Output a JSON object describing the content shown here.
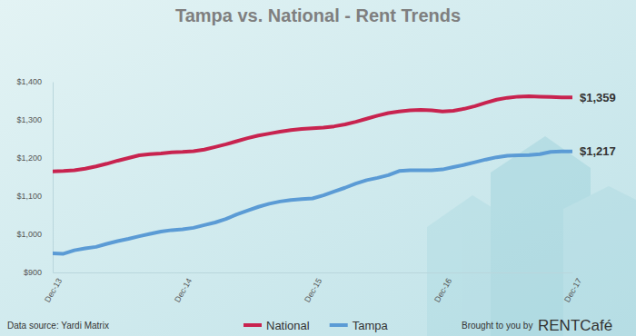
{
  "chart_data": {
    "type": "line",
    "title": "Tampa vs. National - Rent Trends",
    "source": "Data source: Yardi Matrix",
    "credit": "Brought to you by",
    "logo": "RENTCafé",
    "categories": [
      "Dec-13",
      null,
      null,
      null,
      null,
      null,
      null,
      null,
      null,
      null,
      null,
      null,
      "Dec-14",
      null,
      null,
      null,
      null,
      null,
      null,
      null,
      null,
      null,
      null,
      null,
      "Dec-15",
      null,
      null,
      null,
      null,
      null,
      null,
      null,
      null,
      null,
      null,
      null,
      "Dec-16",
      null,
      null,
      null,
      null,
      null,
      null,
      null,
      null,
      null,
      null,
      null,
      "Dec-17"
    ],
    "series": [
      {
        "name": "National",
        "color": "#c8234f",
        "values": [
          1165,
          1166,
          1168,
          1172,
          1178,
          1185,
          1193,
          1200,
          1207,
          1210,
          1212,
          1215,
          1216,
          1218,
          1222,
          1229,
          1236,
          1244,
          1252,
          1259,
          1264,
          1269,
          1273,
          1276,
          1278,
          1280,
          1283,
          1288,
          1295,
          1303,
          1311,
          1318,
          1322,
          1325,
          1326,
          1325,
          1322,
          1324,
          1329,
          1336,
          1345,
          1353,
          1358,
          1361,
          1362,
          1361,
          1360,
          1359,
          1359
        ],
        "value_labels": [
          null,
          null,
          null,
          null,
          null,
          null,
          null,
          null,
          null,
          null,
          null,
          null,
          null,
          null,
          null,
          null,
          null,
          null,
          null,
          null,
          null,
          null,
          null,
          null,
          null,
          null,
          null,
          null,
          null,
          null,
          null,
          null,
          null,
          null,
          null,
          null,
          null,
          null,
          null,
          null,
          null,
          null,
          null,
          null,
          null,
          null,
          null,
          null,
          "$1,359"
        ]
      },
      {
        "name": "Tampa",
        "color": "#5b9bd5",
        "values": [
          950,
          949,
          958,
          963,
          967,
          975,
          982,
          988,
          995,
          1001,
          1007,
          1011,
          1013,
          1017,
          1024,
          1031,
          1040,
          1052,
          1062,
          1072,
          1080,
          1086,
          1090,
          1092,
          1094,
          1102,
          1112,
          1122,
          1133,
          1142,
          1148,
          1155,
          1166,
          1168,
          1168,
          1168,
          1170,
          1176,
          1182,
          1189,
          1196,
          1202,
          1206,
          1207,
          1208,
          1210,
          1216,
          1217,
          1217
        ],
        "value_labels": [
          null,
          null,
          null,
          null,
          null,
          null,
          null,
          null,
          null,
          null,
          null,
          null,
          null,
          null,
          null,
          null,
          null,
          null,
          null,
          null,
          null,
          null,
          null,
          null,
          null,
          null,
          null,
          null,
          null,
          null,
          null,
          null,
          null,
          null,
          null,
          null,
          null,
          null,
          null,
          null,
          null,
          null,
          null,
          null,
          null,
          null,
          null,
          null,
          "$1,217"
        ]
      }
    ],
    "ylim": [
      900,
      1400
    ],
    "yticks": [
      {
        "value": 900,
        "label": "$900"
      },
      {
        "value": 1000,
        "label": "$1,000"
      },
      {
        "value": 1100,
        "label": "$1,100"
      },
      {
        "value": 1200,
        "label": "$1,200"
      },
      {
        "value": 1300,
        "label": "$1,300"
      },
      {
        "value": 1400,
        "label": "$1,400"
      }
    ],
    "grid": false,
    "legend": "bottom",
    "data_labels": true
  }
}
